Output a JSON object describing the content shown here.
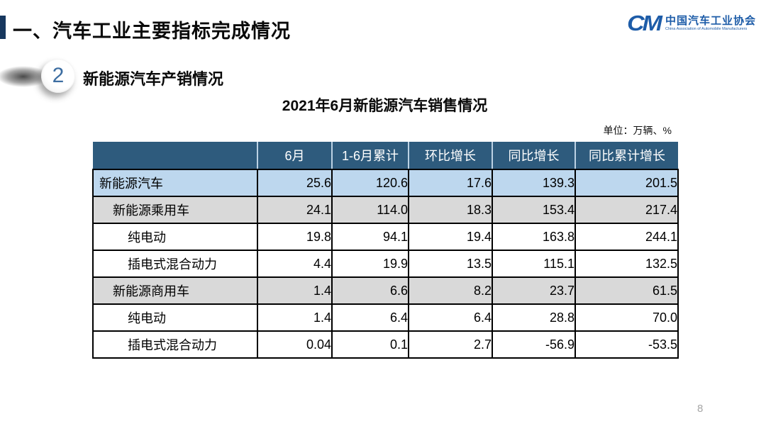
{
  "slide": {
    "title": "一、汽车工业主要指标完成情况",
    "section_number": "2",
    "section_title": "新能源汽车产销情况",
    "table_title": "2021年6月新能源汽车销售情况",
    "unit_label": "单位：万辆、%",
    "page_number": "8"
  },
  "logo": {
    "monogram": "CM",
    "name_cn": "中国汽车工业协会",
    "name_en": "China Association of Automobile Manufacturers"
  },
  "colors": {
    "header_bg": "#2E5B7D",
    "header_divider": "#BCD2E4",
    "row_highlight": "#BDD7EE",
    "row_subtotal": "#D9D9D9",
    "row_default": "#FFFFFF",
    "border": "#000000",
    "logo_blue": "#1D5CA8",
    "badge_number": "#3C6DA1",
    "page_number_grey": "#A6A6A6"
  },
  "chart_data": {
    "type": "table",
    "title": "2021年6月新能源汽车销售情况",
    "unit": "万辆、%",
    "columns": [
      "",
      "6月",
      "1-6月累计",
      "环比增长",
      "同比增长",
      "同比累计增长"
    ],
    "rows": [
      {
        "label": "新能源汽车",
        "indent": 0,
        "style": "highlight",
        "values": [
          "25.6",
          "120.6",
          "17.6",
          "139.3",
          "201.5"
        ]
      },
      {
        "label": "新能源乘用车",
        "indent": 1,
        "style": "subtotal",
        "values": [
          "24.1",
          "114.0",
          "18.3",
          "153.4",
          "217.4"
        ]
      },
      {
        "label": "纯电动",
        "indent": 2,
        "style": "default",
        "values": [
          "19.8",
          "94.1",
          "19.4",
          "163.8",
          "244.1"
        ]
      },
      {
        "label": "插电式混合动力",
        "indent": 2,
        "style": "default",
        "values": [
          "4.4",
          "19.9",
          "13.5",
          "115.1",
          "132.5"
        ]
      },
      {
        "label": "新能源商用车",
        "indent": 1,
        "style": "subtotal",
        "values": [
          "1.4",
          "6.6",
          "8.2",
          "23.7",
          "61.5"
        ]
      },
      {
        "label": "纯电动",
        "indent": 2,
        "style": "default",
        "values": [
          "1.4",
          "6.4",
          "6.4",
          "28.8",
          "70.0"
        ]
      },
      {
        "label": "插电式混合动力",
        "indent": 2,
        "style": "default",
        "values": [
          "0.04",
          "0.1",
          "2.7",
          "-56.9",
          "-53.5"
        ]
      }
    ]
  }
}
